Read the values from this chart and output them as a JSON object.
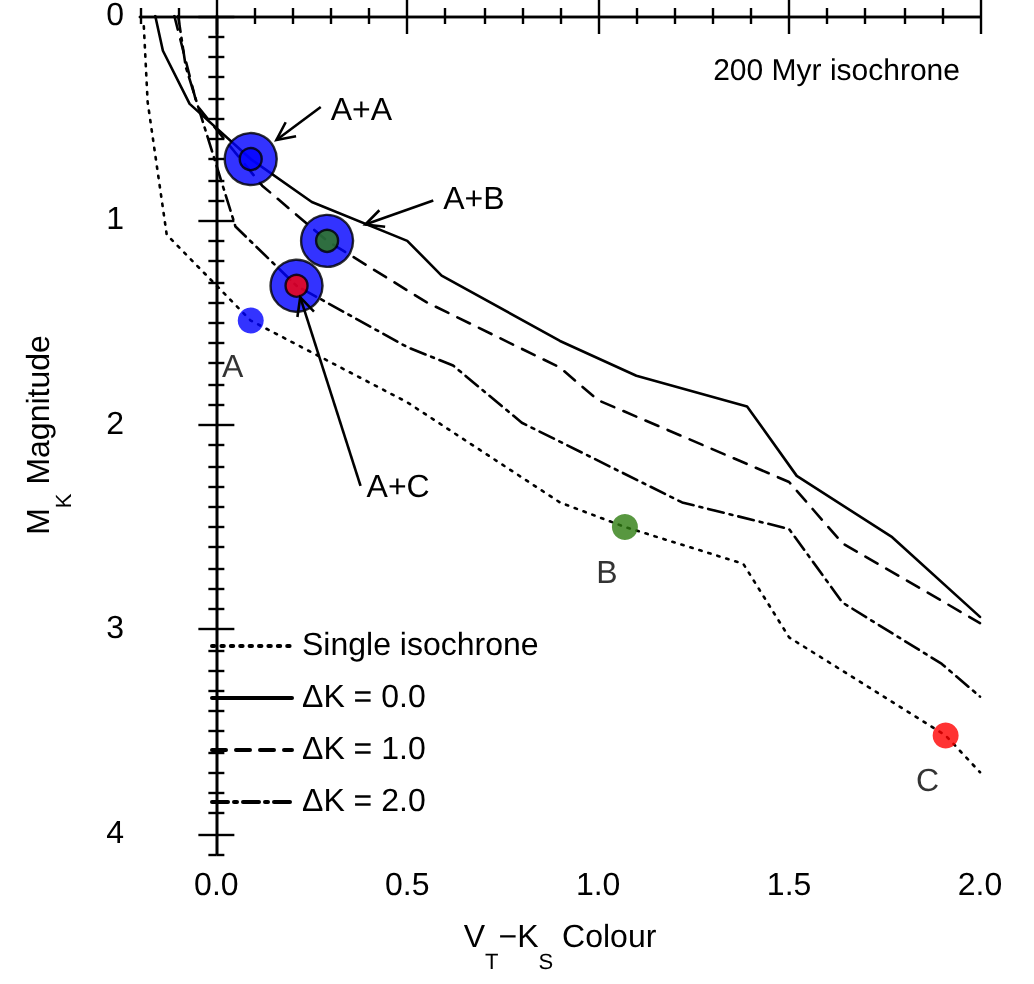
{
  "chart_data": {
    "type": "line",
    "xlabel": "V$_{T}$−K$_{S}$ Colour",
    "ylabel": "M$_{K}$ Magnitude",
    "annotations": [
      "200 Myr isochrone",
      {
        "text": "A+A",
        "x": 0.09,
        "y": 0.7
      },
      {
        "text": "A+B",
        "x": 0.39,
        "y": 1.02
      },
      {
        "text": "A+C",
        "x": 0.21,
        "y": 1.32
      }
    ],
    "xlim": [
      -0.2,
      2.0
    ],
    "xticks": [
      {
        "value": 0,
        "label": "0.0"
      },
      {
        "value": 0.5,
        "label": "0.5"
      },
      {
        "value": 1,
        "label": "1.0"
      },
      {
        "value": 1.5,
        "label": "1.5"
      },
      {
        "value": 2,
        "label": "2.0"
      }
    ],
    "ylim": [
      4.1,
      0
    ],
    "yticks": [
      0,
      1,
      2,
      3,
      4
    ],
    "legend": "bottom left",
    "marker": "none",
    "series": [
      {
        "name": "Single isochrone",
        "color": "#000000",
        "line_style": "dotted",
        "x": [
          -0.19,
          -0.18,
          -0.13,
          0.09,
          0.5,
          0.9,
          1.07,
          1.38,
          1.5,
          1.91,
          2.0
        ],
        "values": [
          0.05,
          0.42,
          1.07,
          1.49,
          1.89,
          2.38,
          2.5,
          2.68,
          3.04,
          3.52,
          3.7
        ]
      },
      {
        "name": "ΔK = 0.0",
        "color": "#000000",
        "line_style": "solid",
        "x": [
          -0.16,
          -0.14,
          -0.07,
          0.09,
          0.25,
          0.5,
          0.59,
          0.9,
          1.1,
          1.39,
          1.52,
          1.77,
          2.0
        ],
        "values": [
          0.0,
          0.17,
          0.43,
          0.7,
          0.91,
          1.1,
          1.27,
          1.59,
          1.76,
          1.91,
          2.25,
          2.55,
          2.94
        ]
      },
      {
        "name": "ΔK = 1.0",
        "color": "#000000",
        "line_style": "dashed",
        "x": [
          -0.11,
          -0.05,
          0.12,
          0.29,
          0.55,
          0.9,
          1.0,
          1.5,
          1.64,
          2.0
        ],
        "values": [
          0.0,
          0.44,
          0.83,
          1.1,
          1.4,
          1.72,
          1.88,
          2.28,
          2.58,
          2.97
        ]
      },
      {
        "name": "ΔK = 2.0",
        "color": "#000000",
        "line_style": "dashdot",
        "x": [
          -0.1,
          -0.08,
          0.05,
          0.21,
          0.5,
          0.62,
          0.8,
          1.22,
          1.5,
          1.64,
          1.9,
          2.0
        ],
        "values": [
          0.0,
          0.25,
          1.03,
          1.32,
          1.62,
          1.71,
          1.99,
          2.38,
          2.51,
          2.87,
          3.17,
          3.33
        ]
      },
      {
        "type": "scatter",
        "marker": "circle",
        "x": [
          0.09,
          0.29,
          0.21
        ],
        "values": [
          0.7,
          1.1,
          1.32
        ],
        "colors": [
          "#0000ff",
          "#0000ff",
          "#0000ff"
        ]
      },
      {
        "type": "scatter",
        "marker": "circle",
        "x": [
          0.09,
          0.29,
          0.21
        ],
        "values": [
          0.7,
          1.1,
          1.32
        ],
        "colors": [
          "#0000ff",
          "#2e7d10",
          "#ff0000"
        ]
      },
      {
        "type": "scatter",
        "marker": "circle",
        "x": [
          0.09,
          1.07,
          1.91
        ],
        "values": [
          1.49,
          2.5,
          3.52
        ],
        "colors": [
          "#0000ff",
          "#2e7d10",
          "#ff0000"
        ],
        "value_labels": [
          "A",
          "B",
          "C"
        ]
      }
    ]
  }
}
